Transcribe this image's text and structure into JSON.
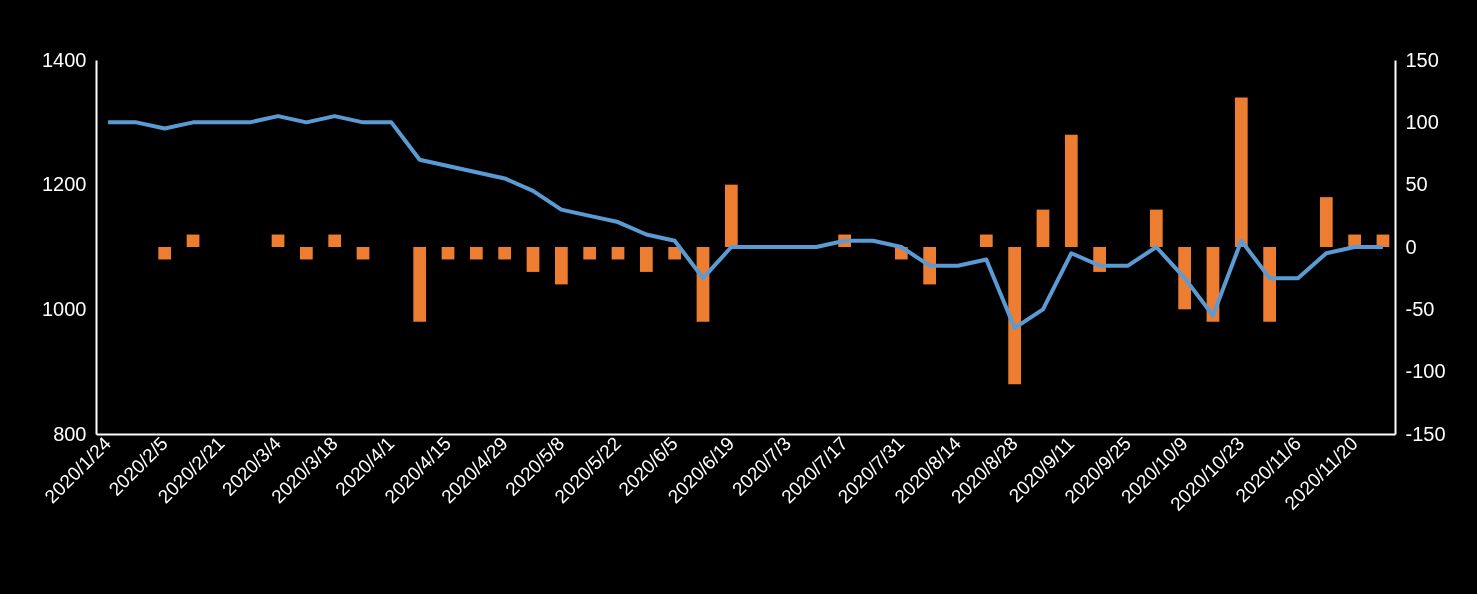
{
  "chart_data": {
    "type": "bar",
    "categories": [
      "2020/1/24",
      null,
      "2020/2/5",
      null,
      "2020/2/21",
      null,
      "2020/3/4",
      null,
      "2020/3/18",
      null,
      "2020/4/1",
      null,
      "2020/4/15",
      null,
      "2020/4/29",
      null,
      "2020/5/8",
      null,
      "2020/5/22",
      null,
      "2020/6/5",
      null,
      "2020/6/19",
      null,
      "2020/7/3",
      null,
      "2020/7/17",
      null,
      "2020/7/31",
      null,
      "2020/8/14",
      null,
      "2020/8/28",
      null,
      "2020/9/11",
      null,
      "2020/9/25",
      null,
      "2020/10/9",
      null,
      "2020/10/23",
      null,
      "2020/11/6",
      null,
      "2020/11/20",
      null
    ],
    "series": [
      {
        "type": "line",
        "color": "#5b9bd5",
        "values": [
          1300,
          1300,
          1290,
          1300,
          1300,
          1300,
          1310,
          1300,
          1310,
          1300,
          1300,
          1240,
          1230,
          1220,
          1210,
          1190,
          1160,
          1150,
          1140,
          1120,
          1110,
          1050,
          1100,
          1100,
          1100,
          1100,
          1110,
          1110,
          1100,
          1070,
          1070,
          1080,
          970,
          1000,
          1090,
          1070,
          1070,
          1100,
          1050,
          990,
          1110,
          1050,
          1050,
          1090,
          1100,
          1100
        ]
      },
      {
        "axis": "y2",
        "color": "#ed7d31",
        "values": [
          0,
          0,
          -10,
          10,
          0,
          0,
          10,
          -10,
          10,
          -10,
          0,
          -60,
          -10,
          -10,
          -10,
          -20,
          -30,
          -10,
          -10,
          -20,
          -10,
          -60,
          50,
          0,
          0,
          0,
          10,
          0,
          -10,
          -30,
          0,
          10,
          -110,
          30,
          90,
          -20,
          0,
          30,
          -50,
          -60,
          120,
          -60,
          0,
          40,
          10,
          10
        ]
      }
    ],
    "ylim": [
      800,
      1400
    ],
    "yticks": [
      800,
      1000,
      1200,
      1400
    ],
    "y2lim": [
      -150,
      150
    ],
    "y2ticks": [
      -150,
      -100,
      -50,
      0,
      50,
      100,
      150
    ],
    "grid": false
  }
}
